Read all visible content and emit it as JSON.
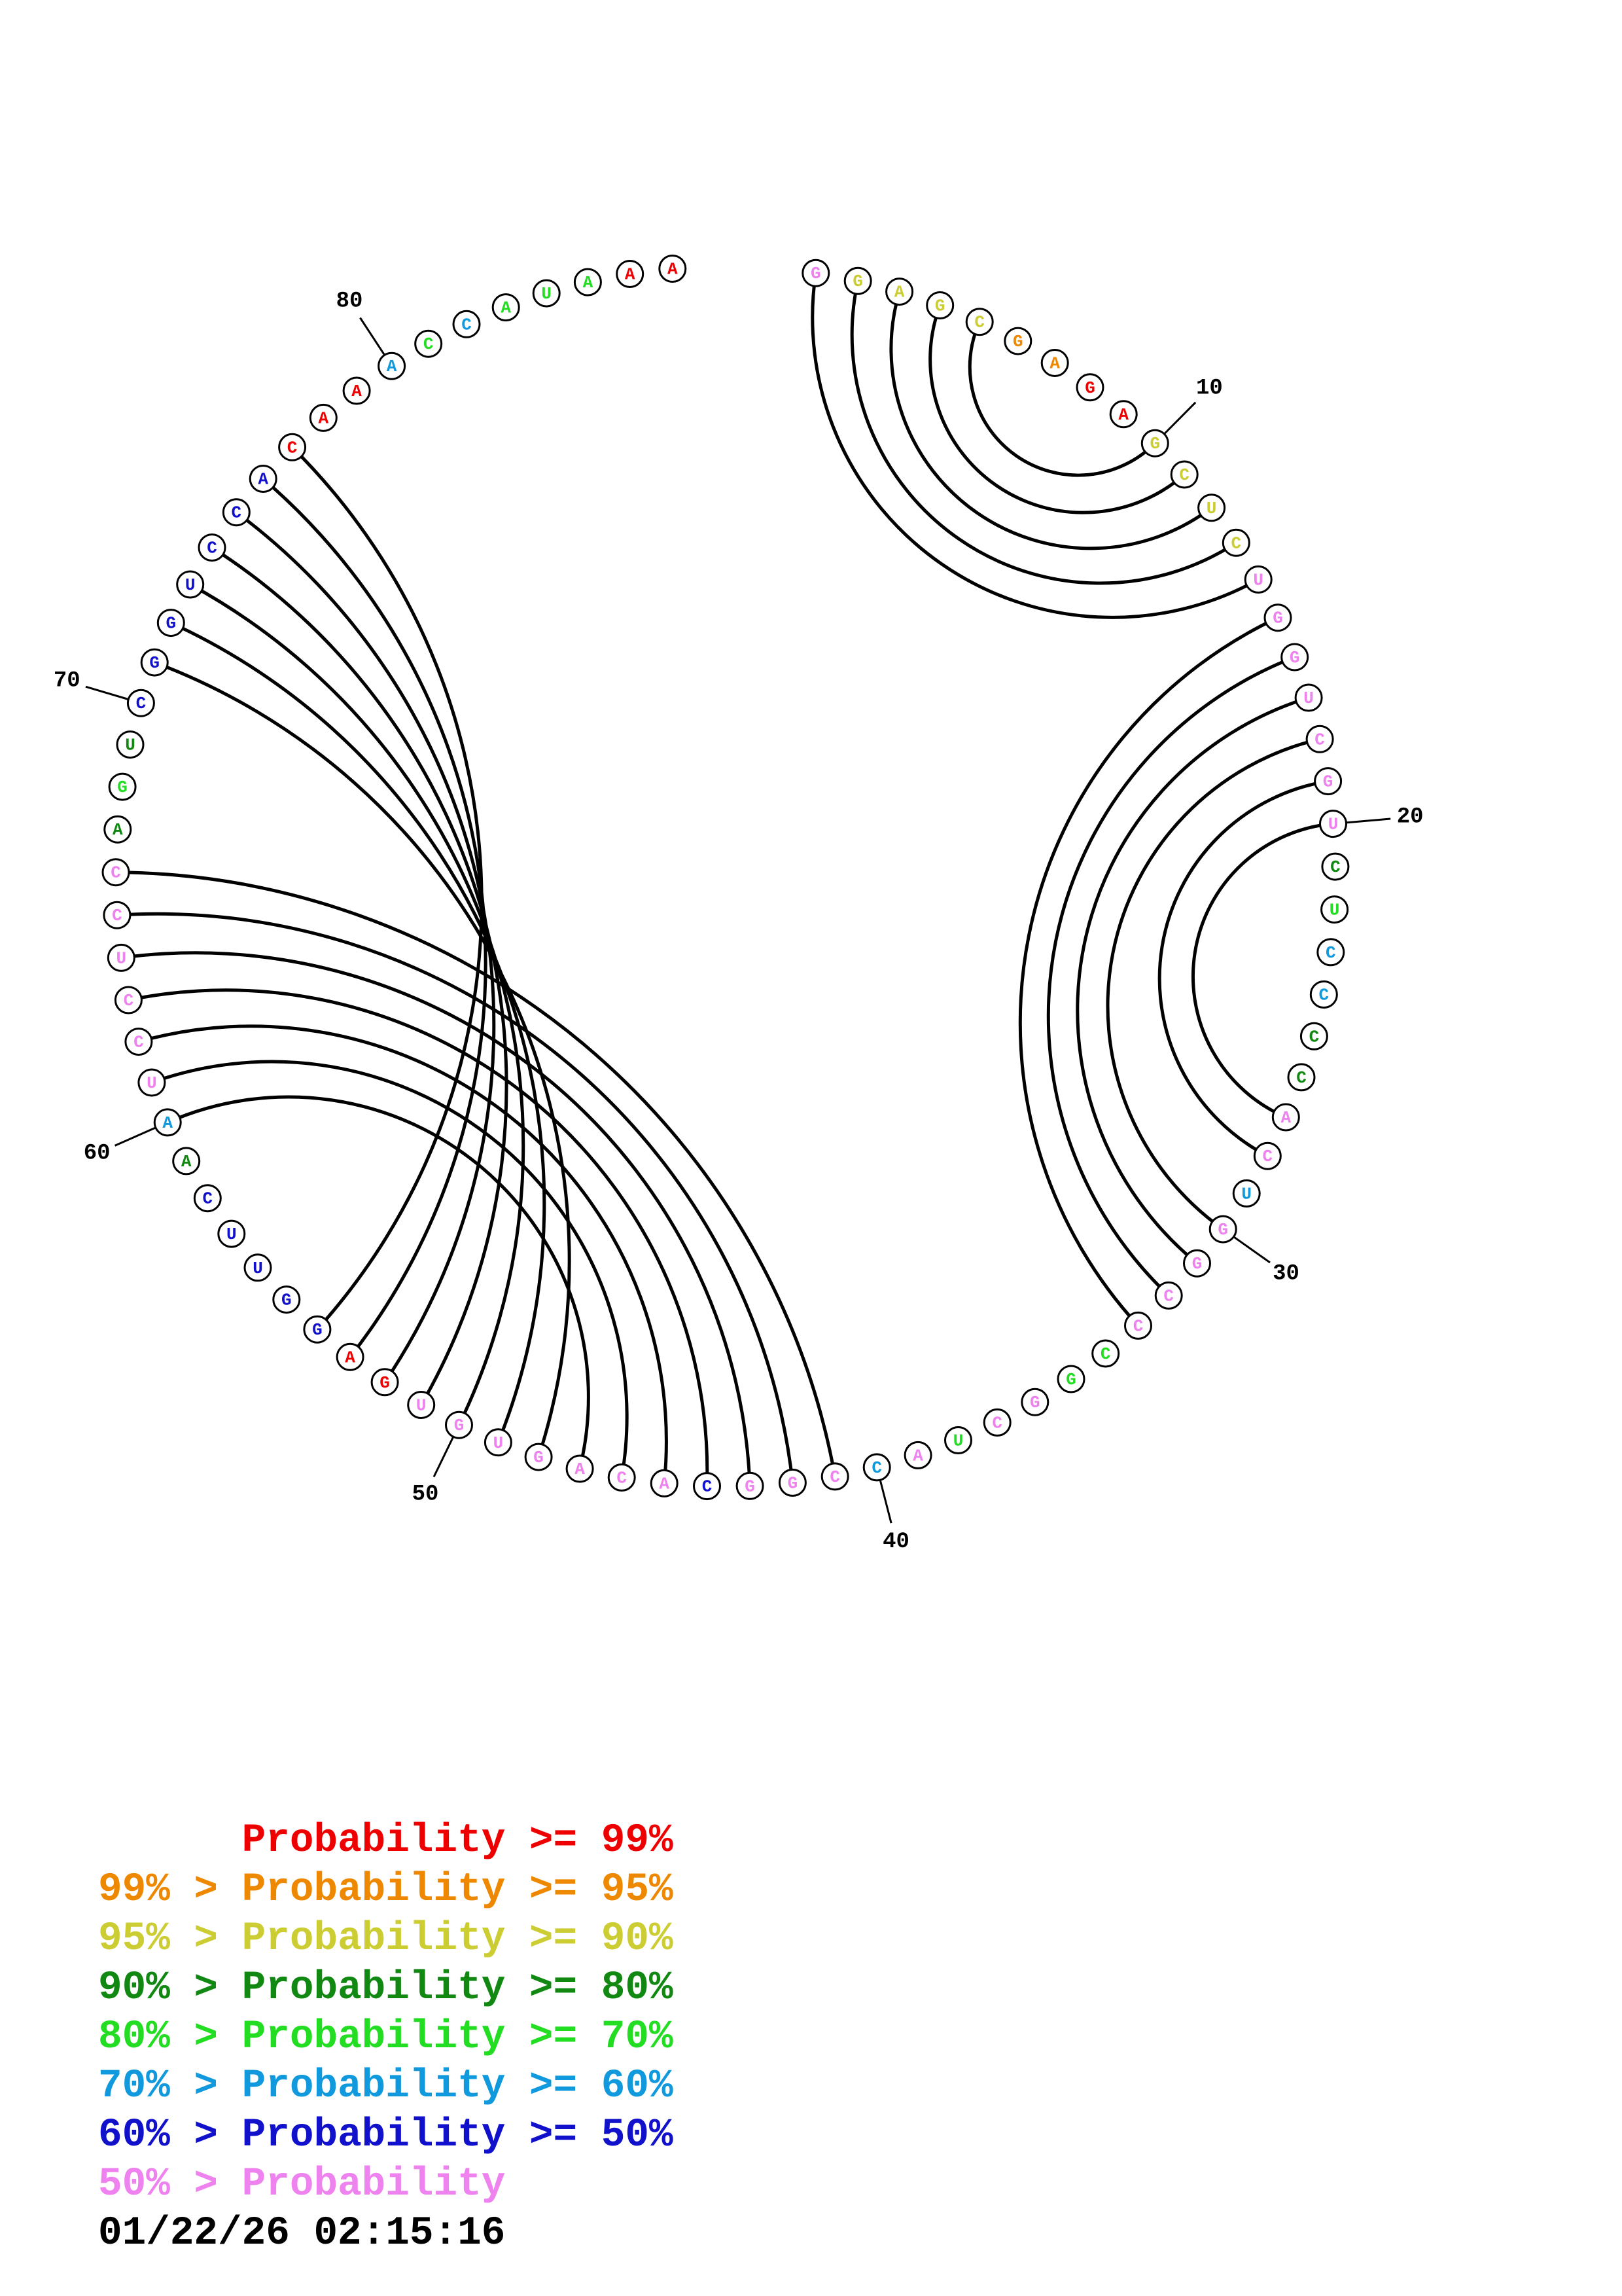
{
  "sequence": "GGAGCGAGAGCUCGGUCGUCUCCCCACUGGCCCGGCUAGCCGGCACAGUGUGAGGUUCAAUCCUCCAGUCGGUCCACAAACCAUAAA",
  "nucleotides": [
    {
      "n": 1,
      "base": "G",
      "color": "#ee82ee"
    },
    {
      "n": 2,
      "base": "G",
      "color": "#cccc33"
    },
    {
      "n": 3,
      "base": "A",
      "color": "#cccc33"
    },
    {
      "n": 4,
      "base": "G",
      "color": "#cccc33"
    },
    {
      "n": 5,
      "base": "C",
      "color": "#cccc33"
    },
    {
      "n": 6,
      "base": "G",
      "color": "#ee8800"
    },
    {
      "n": 7,
      "base": "A",
      "color": "#ee8800"
    },
    {
      "n": 8,
      "base": "G",
      "color": "#ee0000"
    },
    {
      "n": 9,
      "base": "A",
      "color": "#ee0000"
    },
    {
      "n": 10,
      "base": "G",
      "color": "#cccc33"
    },
    {
      "n": 11,
      "base": "C",
      "color": "#cccc33"
    },
    {
      "n": 12,
      "base": "U",
      "color": "#cccc33"
    },
    {
      "n": 13,
      "base": "C",
      "color": "#cccc33"
    },
    {
      "n": 14,
      "base": "U",
      "color": "#ee82ee"
    },
    {
      "n": 15,
      "base": "G",
      "color": "#ee82ee"
    },
    {
      "n": 16,
      "base": "G",
      "color": "#ee82ee"
    },
    {
      "n": 17,
      "base": "U",
      "color": "#ee82ee"
    },
    {
      "n": 18,
      "base": "C",
      "color": "#ee82ee"
    },
    {
      "n": 19,
      "base": "G",
      "color": "#ee82ee"
    },
    {
      "n": 20,
      "base": "U",
      "color": "#ee82ee"
    },
    {
      "n": 21,
      "base": "C",
      "color": "#118811"
    },
    {
      "n": 22,
      "base": "U",
      "color": "#22dd22"
    },
    {
      "n": 23,
      "base": "C",
      "color": "#1199dd"
    },
    {
      "n": 24,
      "base": "C",
      "color": "#1199dd"
    },
    {
      "n": 25,
      "base": "C",
      "color": "#118811"
    },
    {
      "n": 26,
      "base": "C",
      "color": "#118811"
    },
    {
      "n": 27,
      "base": "A",
      "color": "#ee82ee"
    },
    {
      "n": 28,
      "base": "C",
      "color": "#ee82ee"
    },
    {
      "n": 29,
      "base": "U",
      "color": "#1199dd"
    },
    {
      "n": 30,
      "base": "G",
      "color": "#ee82ee"
    },
    {
      "n": 31,
      "base": "G",
      "color": "#ee82ee"
    },
    {
      "n": 32,
      "base": "C",
      "color": "#ee82ee"
    },
    {
      "n": 33,
      "base": "C",
      "color": "#ee82ee"
    },
    {
      "n": 34,
      "base": "C",
      "color": "#22dd22"
    },
    {
      "n": 35,
      "base": "G",
      "color": "#22dd22"
    },
    {
      "n": 36,
      "base": "G",
      "color": "#ee82ee"
    },
    {
      "n": 37,
      "base": "C",
      "color": "#ee82ee"
    },
    {
      "n": 38,
      "base": "U",
      "color": "#22dd22"
    },
    {
      "n": 39,
      "base": "A",
      "color": "#ee82ee"
    },
    {
      "n": 40,
      "base": "C",
      "color": "#1199dd"
    },
    {
      "n": 41,
      "base": "C",
      "color": "#ee82ee"
    },
    {
      "n": 42,
      "base": "G",
      "color": "#ee82ee"
    },
    {
      "n": 43,
      "base": "G",
      "color": "#ee82ee"
    },
    {
      "n": 44,
      "base": "C",
      "color": "#1111cc"
    },
    {
      "n": 45,
      "base": "A",
      "color": "#ee82ee"
    },
    {
      "n": 46,
      "base": "C",
      "color": "#ee82ee"
    },
    {
      "n": 47,
      "base": "A",
      "color": "#ee82ee"
    },
    {
      "n": 48,
      "base": "G",
      "color": "#ee82ee"
    },
    {
      "n": 49,
      "base": "U",
      "color": "#ee82ee"
    },
    {
      "n": 50,
      "base": "G",
      "color": "#ee82ee"
    },
    {
      "n": 51,
      "base": "U",
      "color": "#ee82ee"
    },
    {
      "n": 52,
      "base": "G",
      "color": "#ee0000"
    },
    {
      "n": 53,
      "base": "A",
      "color": "#ee0000"
    },
    {
      "n": 54,
      "base": "G",
      "color": "#1111cc"
    },
    {
      "n": 55,
      "base": "G",
      "color": "#1111cc"
    },
    {
      "n": 56,
      "base": "U",
      "color": "#1111cc"
    },
    {
      "n": 57,
      "base": "U",
      "color": "#1111cc"
    },
    {
      "n": 58,
      "base": "C",
      "color": "#1111cc"
    },
    {
      "n": 59,
      "base": "A",
      "color": "#118811"
    },
    {
      "n": 60,
      "base": "A",
      "color": "#1199dd"
    },
    {
      "n": 61,
      "base": "U",
      "color": "#ee82ee"
    },
    {
      "n": 62,
      "base": "C",
      "color": "#ee82ee"
    },
    {
      "n": 63,
      "base": "C",
      "color": "#ee82ee"
    },
    {
      "n": 64,
      "base": "U",
      "color": "#ee82ee"
    },
    {
      "n": 65,
      "base": "C",
      "color": "#ee82ee"
    },
    {
      "n": 66,
      "base": "C",
      "color": "#ee82ee"
    },
    {
      "n": 67,
      "base": "A",
      "color": "#118811"
    },
    {
      "n": 68,
      "base": "G",
      "color": "#22dd22"
    },
    {
      "n": 69,
      "base": "U",
      "color": "#118811"
    },
    {
      "n": 70,
      "base": "C",
      "color": "#1111cc"
    },
    {
      "n": 71,
      "base": "G",
      "color": "#1111cc"
    },
    {
      "n": 72,
      "base": "G",
      "color": "#1111cc"
    },
    {
      "n": 73,
      "base": "U",
      "color": "#1111cc"
    },
    {
      "n": 74,
      "base": "C",
      "color": "#1111cc"
    },
    {
      "n": 75,
      "base": "C",
      "color": "#1111cc"
    },
    {
      "n": 76,
      "base": "A",
      "color": "#1111cc"
    },
    {
      "n": 77,
      "base": "C",
      "color": "#ee0000"
    },
    {
      "n": 78,
      "base": "A",
      "color": "#ee0000"
    },
    {
      "n": 79,
      "base": "A",
      "color": "#ee0000"
    },
    {
      "n": 80,
      "base": "A",
      "color": "#1199dd"
    },
    {
      "n": 81,
      "base": "C",
      "color": "#22dd22"
    },
    {
      "n": 82,
      "base": "C",
      "color": "#1199dd"
    },
    {
      "n": 83,
      "base": "A",
      "color": "#22dd22"
    },
    {
      "n": 84,
      "base": "U",
      "color": "#22dd22"
    },
    {
      "n": 85,
      "base": "A",
      "color": "#22dd22"
    },
    {
      "n": 86,
      "base": "A",
      "color": "#ee0000"
    },
    {
      "n": 87,
      "base": "A",
      "color": "#ee0000"
    }
  ],
  "pairs": [
    [
      1,
      14
    ],
    [
      2,
      13
    ],
    [
      3,
      12
    ],
    [
      4,
      11
    ],
    [
      5,
      10
    ],
    [
      15,
      33
    ],
    [
      16,
      32
    ],
    [
      17,
      31
    ],
    [
      18,
      30
    ],
    [
      19,
      28
    ],
    [
      20,
      27
    ],
    [
      41,
      66
    ],
    [
      42,
      65
    ],
    [
      43,
      64
    ],
    [
      44,
      63
    ],
    [
      45,
      62
    ],
    [
      46,
      61
    ],
    [
      47,
      60
    ],
    [
      48,
      71
    ],
    [
      49,
      72
    ],
    [
      50,
      73
    ],
    [
      51,
      74
    ],
    [
      52,
      75
    ],
    [
      53,
      76
    ],
    [
      54,
      77
    ]
  ],
  "tick_labels": [
    {
      "n": 10,
      "label": "10"
    },
    {
      "n": 20,
      "label": "20"
    },
    {
      "n": 30,
      "label": "30"
    },
    {
      "n": 40,
      "label": "40"
    },
    {
      "n": 50,
      "label": "50"
    },
    {
      "n": 60,
      "label": "60"
    },
    {
      "n": 70,
      "label": "70"
    },
    {
      "n": 80,
      "label": "80"
    }
  ],
  "legend": [
    {
      "prefix": "",
      "text": "Probability >= 99%",
      "color": "#ee0000"
    },
    {
      "prefix": "99% > ",
      "text": "Probability >= 95%",
      "color": "#ee8800"
    },
    {
      "prefix": "95% > ",
      "text": "Probability >= 90%",
      "color": "#cccc33"
    },
    {
      "prefix": "90% > ",
      "text": "Probability >= 80%",
      "color": "#118811"
    },
    {
      "prefix": "80% > ",
      "text": "Probability >= 70%",
      "color": "#22dd22"
    },
    {
      "prefix": "70% > ",
      "text": "Probability >= 60%",
      "color": "#1199dd"
    },
    {
      "prefix": "60% > ",
      "text": "Probability >= 50%",
      "color": "#1111cc"
    },
    {
      "prefix": "50% > ",
      "text": "Probability",
      "color": "#ee82ee"
    }
  ],
  "timestamp": "01/22/26 02:15:16"
}
